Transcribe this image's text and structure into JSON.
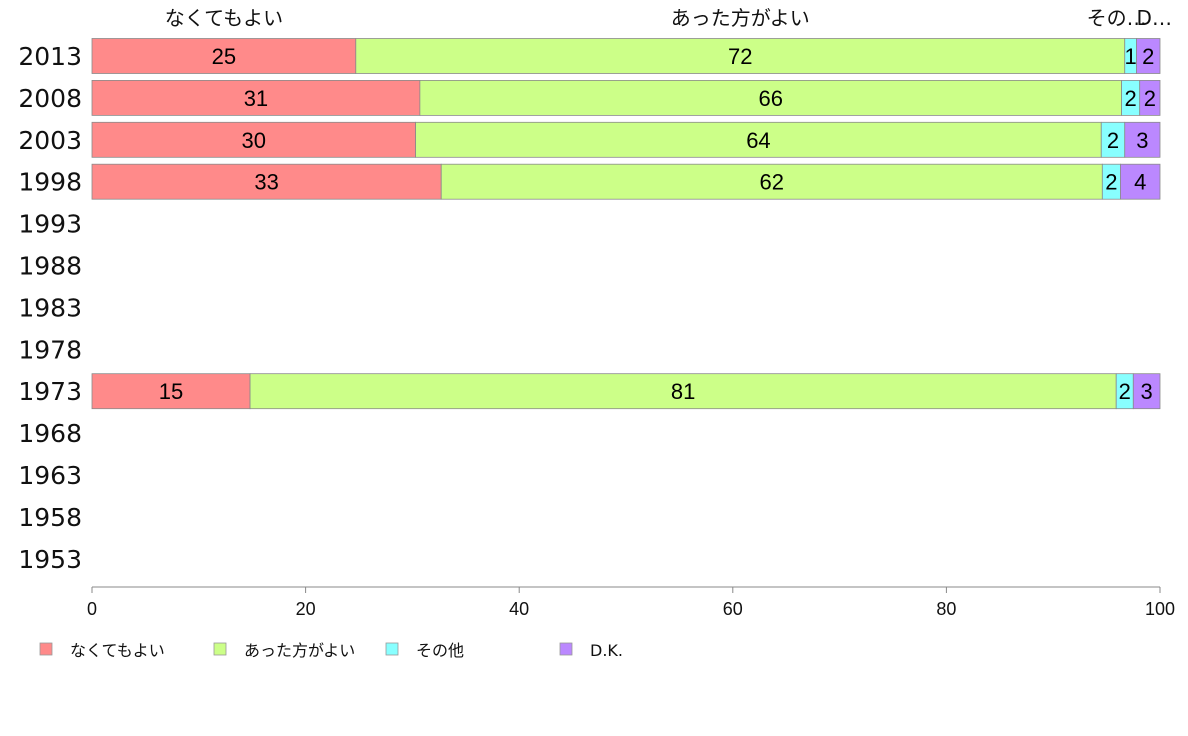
{
  "chart_data": {
    "type": "bar",
    "orientation": "horizontal",
    "stacked": true,
    "categories": [
      "2013",
      "2008",
      "2003",
      "1998",
      "1993",
      "1988",
      "1983",
      "1978",
      "1973",
      "1968",
      "1963",
      "1958",
      "1953"
    ],
    "series": [
      {
        "name": "なくてもよい",
        "color": "#ff8a8a",
        "values": [
          24.7,
          30.7,
          30.3,
          32.7,
          null,
          null,
          null,
          null,
          14.8,
          null,
          null,
          null,
          null
        ],
        "labels": [
          "25",
          "31",
          "30",
          "33",
          "",
          "",
          "",
          "",
          "15",
          "",
          "",
          "",
          ""
        ]
      },
      {
        "name": "あった方がよい",
        "color": "#ccff88",
        "values": [
          72.0,
          65.7,
          64.2,
          61.9,
          null,
          null,
          null,
          null,
          81.1,
          null,
          null,
          null,
          null
        ],
        "labels": [
          "72",
          "66",
          "64",
          "62",
          "",
          "",
          "",
          "",
          "81",
          "",
          "",
          "",
          ""
        ]
      },
      {
        "name": "その他",
        "color": "#88ffff",
        "values": [
          1.1,
          1.7,
          2.2,
          1.7,
          null,
          null,
          null,
          null,
          1.6,
          null,
          null,
          null,
          null
        ],
        "labels": [
          "1",
          "2",
          "2",
          "2",
          "",
          "",
          "",
          "",
          "2",
          "",
          "",
          "",
          ""
        ]
      },
      {
        "name": "D.K.",
        "color": "#bb88ff",
        "values": [
          2.2,
          1.9,
          3.3,
          3.7,
          null,
          null,
          null,
          null,
          2.5,
          null,
          null,
          null,
          null
        ],
        "labels": [
          "2",
          "2",
          "3",
          "4",
          "",
          "",
          "",
          "",
          "3",
          "",
          "",
          "",
          ""
        ]
      }
    ],
    "top_labels": [
      "なくてもよい",
      "あった方がよい",
      "その…",
      "D…"
    ],
    "xlim": [
      0,
      100
    ],
    "xticks": [
      "0",
      "20",
      "40",
      "60",
      "80",
      "100"
    ],
    "xlabel": "",
    "ylabel": "",
    "title": "",
    "grid": false,
    "legend_placement": "bottom-left"
  }
}
